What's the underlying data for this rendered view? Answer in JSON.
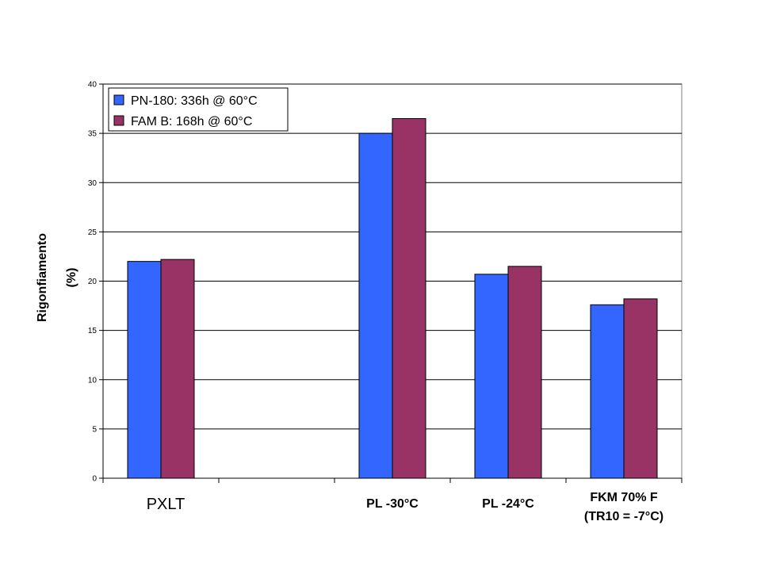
{
  "chart_data": {
    "type": "bar",
    "ylabel_lines": [
      "Rigonfiamento",
      "(%)"
    ],
    "ylim": [
      0,
      40
    ],
    "yticks": [
      0,
      5,
      10,
      15,
      20,
      25,
      30,
      35,
      40
    ],
    "grid": true,
    "legend_position": "top-left",
    "categories": [
      {
        "lines": [
          "PXLT"
        ],
        "style": "plain"
      },
      {
        "lines": [
          ""
        ],
        "style": "plain"
      },
      {
        "lines": [
          "PL -30°C"
        ],
        "style": "bold"
      },
      {
        "lines": [
          "PL -24°C"
        ],
        "style": "bold"
      },
      {
        "lines": [
          "FKM 70% F",
          "(TR10 = -7°C)"
        ],
        "style": "bold"
      }
    ],
    "series": [
      {
        "name": "PN-180: 336h @ 60°C",
        "color": "#3366ff",
        "values": [
          22.0,
          null,
          35.0,
          20.7,
          17.6
        ]
      },
      {
        "name": "FAM B: 168h @ 60°C",
        "color": "#993366",
        "values": [
          22.2,
          null,
          36.5,
          21.5,
          18.2
        ]
      }
    ]
  }
}
